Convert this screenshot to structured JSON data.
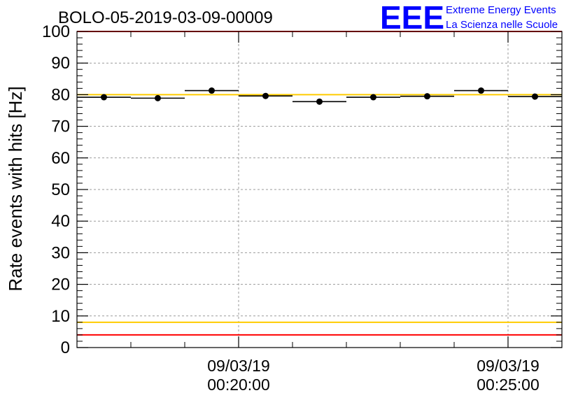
{
  "chart_data": {
    "type": "scatter",
    "title": "BOLO-05-2019-03-09-00009",
    "xlabel": "",
    "ylabel": "Rate events with hits [Hz]",
    "ylim": [
      0,
      100
    ],
    "yticks": [
      0,
      10,
      20,
      30,
      40,
      50,
      60,
      70,
      80,
      90,
      100
    ],
    "xlim": [
      "2019-03-09 00:17:00",
      "2019-03-09 00:26:00"
    ],
    "xticks": [
      {
        "time": "2019-03-09 00:20:00",
        "date_label": "09/03/19",
        "time_label": "00:20:00"
      },
      {
        "time": "2019-03-09 00:25:00",
        "date_label": "09/03/19",
        "time_label": "00:25:00"
      }
    ],
    "grid": true,
    "points": [
      {
        "x_start": "2019-03-09 00:17:00",
        "x_end": "2019-03-09 00:18:00",
        "y": 79.2
      },
      {
        "x_start": "2019-03-09 00:18:00",
        "x_end": "2019-03-09 00:19:00",
        "y": 78.9
      },
      {
        "x_start": "2019-03-09 00:19:00",
        "x_end": "2019-03-09 00:20:00",
        "y": 81.3
      },
      {
        "x_start": "2019-03-09 00:20:00",
        "x_end": "2019-03-09 00:21:00",
        "y": 79.6
      },
      {
        "x_start": "2019-03-09 00:21:00",
        "x_end": "2019-03-09 00:22:00",
        "y": 77.8
      },
      {
        "x_start": "2019-03-09 00:22:00",
        "x_end": "2019-03-09 00:23:00",
        "y": 79.2
      },
      {
        "x_start": "2019-03-09 00:23:00",
        "x_end": "2019-03-09 00:24:00",
        "y": 79.5
      },
      {
        "x_start": "2019-03-09 00:24:00",
        "x_end": "2019-03-09 00:25:00",
        "y": 81.3
      },
      {
        "x_start": "2019-03-09 00:25:00",
        "x_end": "2019-03-09 00:26:00",
        "y": 79.4
      }
    ],
    "reference_lines": [
      {
        "y": 100,
        "color": "#ff0000"
      },
      {
        "y": 80,
        "color": "#ffcc00"
      },
      {
        "y": 8,
        "color": "#ffcc00"
      },
      {
        "y": 4,
        "color": "#ff0000"
      }
    ]
  },
  "logo": {
    "letters": "EEE",
    "line1": "Extreme Energy Events",
    "line2": "La Scienza nelle Scuole",
    "color": "#0000ff"
  }
}
